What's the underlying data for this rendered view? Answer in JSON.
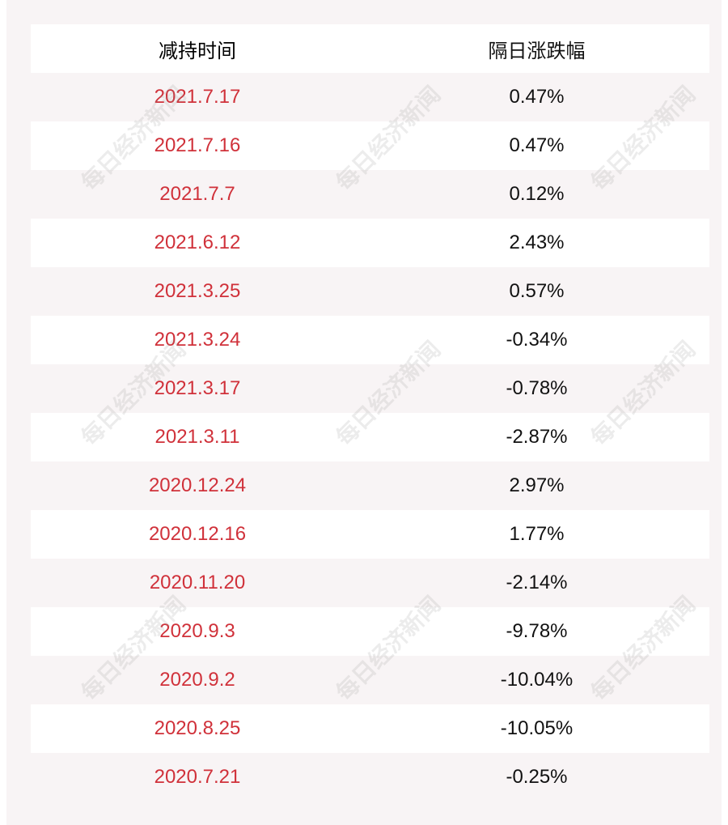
{
  "table": {
    "header": [
      "减持时间",
      "隔日涨跌幅"
    ],
    "rows": [
      [
        "2021.7.17",
        "0.47%"
      ],
      [
        "2021.7.16",
        "0.47%"
      ],
      [
        "2021.7.7",
        "0.12%"
      ],
      [
        "2021.6.12",
        "2.43%"
      ],
      [
        "2021.3.25",
        "0.57%"
      ],
      [
        "2021.3.24",
        "-0.34%"
      ],
      [
        "2021.3.17",
        "-0.78%"
      ],
      [
        "2021.3.11",
        "-2.87%"
      ],
      [
        "2020.12.24",
        "2.97%"
      ],
      [
        "2020.12.16",
        "1.77%"
      ],
      [
        "2020.11.20",
        "-2.14%"
      ],
      [
        "2020.9.3",
        "-9.78%"
      ],
      [
        "2020.9.2",
        "-10.04%"
      ],
      [
        "2020.8.25",
        "-10.05%"
      ],
      [
        "2020.7.21",
        "-0.25%"
      ]
    ]
  },
  "watermark": "每日经济新闻"
}
